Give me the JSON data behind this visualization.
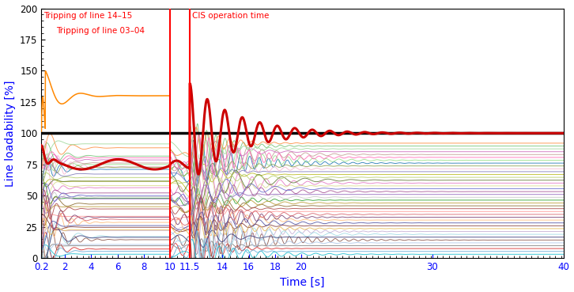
{
  "xlabel": "Time [s]",
  "ylabel": "Line loadability [%]",
  "xlabel_color": "blue",
  "ylabel_color": "blue",
  "xlim": [
    0.2,
    40
  ],
  "ylim": [
    0,
    200
  ],
  "yticks": [
    0,
    25,
    50,
    75,
    100,
    125,
    150,
    175,
    200
  ],
  "xticks": [
    0.2,
    2,
    4,
    6,
    8,
    10,
    11.5,
    14,
    16,
    18,
    20,
    30,
    40
  ],
  "xticklabels": [
    "0.2",
    "2",
    "4",
    "6",
    "8",
    "10",
    "11.5",
    "14",
    "16",
    "18",
    "20",
    "30",
    "40"
  ],
  "vline1_x": 10.0,
  "vline2_x": 11.5,
  "hline_y": 100,
  "annotation1": "Tripping of line 14–15",
  "annotation2": "Tripping of line 03–04",
  "annotation3": "CIS operation time",
  "annotation_color": "red",
  "hline_color": "black",
  "hline_lw": 2.5,
  "vline_color": "red",
  "vline_lw": 1.5,
  "figsize": [
    7.26,
    3.69
  ],
  "dpi": 100,
  "highlighted_line_color": "#cc0000",
  "highlighted_line_lw": 2.2,
  "orange_line_color": "#ff8800",
  "background_color": "white",
  "colors_pool": [
    "#1f77b4",
    "#2ca02c",
    "#d62728",
    "#9467bd",
    "#8c564b",
    "#e377c2",
    "#7f7f7f",
    "#bcbd22",
    "#17becf",
    "#aec7e8",
    "#ffbb78",
    "#98df8a",
    "#ff9896",
    "#c5b0d5",
    "#c49c94",
    "#f7b6d2",
    "#c7c7c7",
    "#dbdb8d",
    "#9edae5",
    "#393b79",
    "#637939",
    "#8c6d31",
    "#843c39",
    "#7b4173",
    "#5254a3",
    "#8ca252",
    "#bd9e39",
    "#ad494a",
    "#a55194",
    "#6b6ecf",
    "#b5cf6b",
    "#e7ba52",
    "#d6616b",
    "#ce6dbd",
    "#74c476",
    "#fd8d3c",
    "#6baed6",
    "#807dba",
    "#a1d99b",
    "#ff69b4",
    "#00ced1",
    "#ff6347",
    "#4682b4",
    "#da70d6",
    "#32cd32"
  ]
}
